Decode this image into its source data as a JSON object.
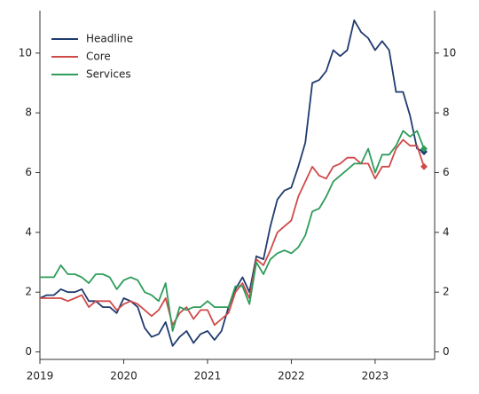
{
  "chart_data": {
    "type": "line",
    "x": [
      2019,
      2019.083,
      2019.167,
      2019.25,
      2019.333,
      2019.417,
      2019.5,
      2019.583,
      2019.667,
      2019.75,
      2019.833,
      2019.917,
      2020,
      2020.083,
      2020.167,
      2020.25,
      2020.333,
      2020.417,
      2020.5,
      2020.583,
      2020.667,
      2020.75,
      2020.833,
      2020.917,
      2021,
      2021.083,
      2021.167,
      2021.25,
      2021.333,
      2021.417,
      2021.5,
      2021.583,
      2021.667,
      2021.75,
      2021.833,
      2021.917,
      2022,
      2022.083,
      2022.167,
      2022.25,
      2022.333,
      2022.417,
      2022.5,
      2022.583,
      2022.667,
      2022.75,
      2022.833,
      2022.917,
      2023,
      2023.083,
      2023.167,
      2023.25,
      2023.333,
      2023.417,
      2023.5,
      2023.583
    ],
    "series": [
      {
        "name": "Headline",
        "color": "#1f3b6e",
        "values": [
          1.8,
          1.9,
          1.9,
          2.1,
          2.0,
          2.0,
          2.1,
          1.7,
          1.7,
          1.5,
          1.5,
          1.3,
          1.8,
          1.7,
          1.5,
          0.8,
          0.5,
          0.6,
          1.0,
          0.2,
          0.5,
          0.7,
          0.3,
          0.6,
          0.7,
          0.4,
          0.7,
          1.5,
          2.1,
          2.5,
          2.0,
          3.2,
          3.1,
          4.2,
          5.1,
          5.4,
          5.5,
          6.2,
          7.0,
          9.0,
          9.1,
          9.4,
          10.1,
          9.9,
          10.1,
          11.1,
          10.7,
          10.5,
          10.1,
          10.4,
          10.1,
          8.7,
          8.7,
          7.9,
          6.8,
          6.7
        ]
      },
      {
        "name": "Core",
        "color": "#d04a4a",
        "values": [
          1.8,
          1.8,
          1.8,
          1.8,
          1.7,
          1.8,
          1.9,
          1.5,
          1.7,
          1.7,
          1.7,
          1.4,
          1.6,
          1.7,
          1.6,
          1.4,
          1.2,
          1.4,
          1.8,
          0.9,
          1.3,
          1.5,
          1.1,
          1.4,
          1.4,
          0.9,
          1.1,
          1.3,
          2.0,
          2.3,
          1.8,
          3.1,
          2.9,
          3.4,
          4.0,
          4.2,
          4.4,
          5.2,
          5.7,
          6.2,
          5.9,
          5.8,
          6.2,
          6.3,
          6.5,
          6.5,
          6.3,
          6.3,
          5.8,
          6.2,
          6.2,
          6.8,
          7.1,
          6.9,
          6.9,
          6.2
        ]
      },
      {
        "name": "Services",
        "color": "#2e9c5a",
        "values": [
          2.5,
          2.5,
          2.5,
          2.9,
          2.6,
          2.6,
          2.5,
          2.3,
          2.6,
          2.6,
          2.5,
          2.1,
          2.4,
          2.5,
          2.4,
          2.0,
          1.9,
          1.7,
          2.3,
          0.7,
          1.5,
          1.4,
          1.5,
          1.5,
          1.7,
          1.5,
          1.5,
          1.5,
          2.2,
          2.2,
          1.6,
          3.0,
          2.6,
          3.1,
          3.3,
          3.4,
          3.3,
          3.5,
          3.9,
          4.7,
          4.8,
          5.2,
          5.7,
          5.9,
          6.1,
          6.3,
          6.3,
          6.8,
          6.0,
          6.6,
          6.6,
          6.9,
          7.4,
          7.2,
          7.4,
          6.8
        ]
      }
    ],
    "xlim": [
      2019,
      2023.71
    ],
    "xticks": [
      2019,
      2020,
      2021,
      2022,
      2023
    ],
    "ylim": [
      -0.25,
      11.42
    ],
    "yticks": [
      0,
      2,
      4,
      6,
      8,
      10
    ],
    "y2lim": [
      -0.25,
      11.42
    ],
    "y2ticks": [
      0,
      2,
      4,
      6,
      8,
      10
    ],
    "legend": "upper-left",
    "end_markers": true
  }
}
